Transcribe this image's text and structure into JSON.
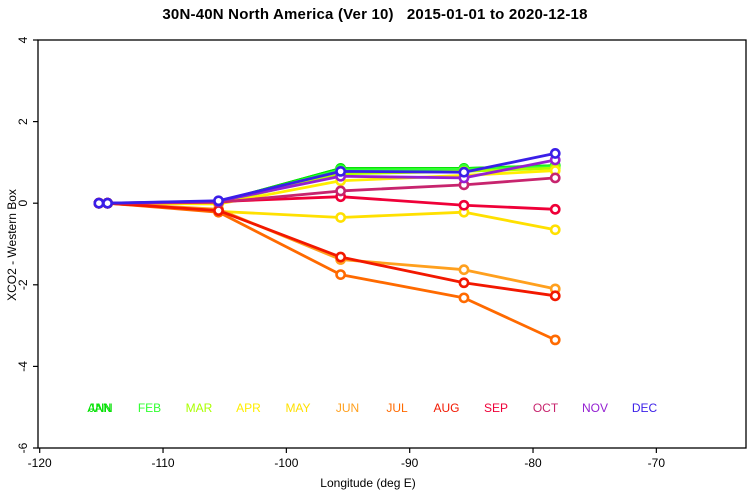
{
  "title": "30N-40N North America (Ver 10)   2015-01-01 to 2020-12-18",
  "chart_data": {
    "type": "line",
    "title": "30N-40N North America (Ver 10)   2015-01-01 to 2020-12-18",
    "xlabel": "Longitude (deg E)",
    "ylabel": "XCO2 - Western Box",
    "xlim": [
      -120,
      -62.6
    ],
    "ylim": [
      -6,
      4
    ],
    "x_ticks": [
      -120,
      -110,
      -100,
      -90,
      -80,
      -70
    ],
    "y_ticks": [
      4,
      2,
      0,
      -2,
      -4,
      -6
    ],
    "grid": false,
    "marker": "open-circle",
    "x": [
      -115.2,
      -114.5,
      -105.5,
      -95.6,
      -85.6,
      -78.2
    ],
    "series": [
      {
        "name": "ANN",
        "color": "#00E100",
        "values": [
          0,
          0,
          0.03,
          0.85,
          0.85,
          0.92
        ]
      },
      {
        "name": "JAN",
        "color": "#00E100",
        "values": [
          0,
          0,
          0.03,
          0.85,
          0.85,
          0.92
        ]
      },
      {
        "name": "FEB",
        "color": "#33FF33",
        "values": [
          0,
          0,
          0.02,
          0.82,
          0.83,
          0.9
        ]
      },
      {
        "name": "MAR",
        "color": "#AAFF00",
        "values": [
          0,
          0,
          0.0,
          0.72,
          0.78,
          0.86
        ]
      },
      {
        "name": "APR",
        "color": "#FFEE00",
        "values": [
          0,
          0,
          -0.02,
          0.55,
          0.68,
          0.8
        ]
      },
      {
        "name": "MAY",
        "color": "#FFE000",
        "values": [
          0,
          0,
          -0.2,
          -0.35,
          -0.22,
          -0.65
        ]
      },
      {
        "name": "JUN",
        "color": "#FFA01E",
        "values": [
          0,
          0,
          -0.15,
          -1.38,
          -1.63,
          -2.1
        ]
      },
      {
        "name": "JUL",
        "color": "#FF6A00",
        "values": [
          0,
          0,
          -0.22,
          -1.75,
          -2.32,
          -3.35
        ]
      },
      {
        "name": "AUG",
        "color": "#F21800",
        "values": [
          0,
          0,
          -0.18,
          -1.32,
          -1.95,
          -2.27
        ]
      },
      {
        "name": "SEP",
        "color": "#EF0038",
        "values": [
          0,
          0,
          0.04,
          0.16,
          -0.05,
          -0.15
        ]
      },
      {
        "name": "OCT",
        "color": "#C7246E",
        "values": [
          0,
          0,
          0.02,
          0.3,
          0.45,
          0.62
        ]
      },
      {
        "name": "NOV",
        "color": "#9420D2",
        "values": [
          0,
          0,
          0.05,
          0.66,
          0.62,
          1.06
        ]
      },
      {
        "name": "DEC",
        "color": "#3A1EE8",
        "values": [
          0,
          0,
          0.06,
          0.78,
          0.76,
          1.22
        ]
      }
    ],
    "legend": {
      "position": "bottom",
      "entries": [
        {
          "label": "ANN",
          "color": "#00E100",
          "slot": 0
        },
        {
          "label": "JAN",
          "color": "#00E100",
          "slot": 0
        },
        {
          "label": "FEB",
          "color": "#33FF33",
          "slot": 1
        },
        {
          "label": "MAR",
          "color": "#AAFF00",
          "slot": 2
        },
        {
          "label": "APR",
          "color": "#FFEE00",
          "slot": 3
        },
        {
          "label": "MAY",
          "color": "#FFE000",
          "slot": 4
        },
        {
          "label": "JUN",
          "color": "#FFA01E",
          "slot": 5
        },
        {
          "label": "JUL",
          "color": "#FF6A00",
          "slot": 6
        },
        {
          "label": "AUG",
          "color": "#F21800",
          "slot": 7
        },
        {
          "label": "SEP",
          "color": "#EF0038",
          "slot": 8
        },
        {
          "label": "OCT",
          "color": "#C7246E",
          "slot": 9
        },
        {
          "label": "NOV",
          "color": "#9420D2",
          "slot": 10
        },
        {
          "label": "DEC",
          "color": "#3A1EE8",
          "slot": 11
        }
      ]
    }
  }
}
